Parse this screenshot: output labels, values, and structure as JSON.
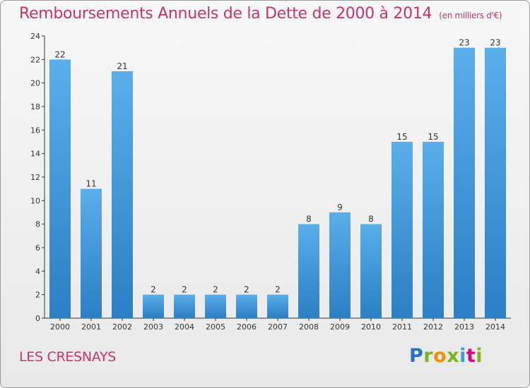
{
  "title": "Remboursements Annuels de la Dette de 2000 à 2014",
  "unit": "(en milliers d'€)",
  "commune": "LES CRESNAYS",
  "logo": "Proxiti",
  "colors": {
    "title": "#c8336f",
    "bar_top": "#5aaeea",
    "bar_bottom": "#2b7fc3"
  },
  "chart_data": {
    "type": "bar",
    "title": "Remboursements Annuels de la Dette de 2000 à 2014",
    "xlabel": "",
    "ylabel": "",
    "categories": [
      "2000",
      "2001",
      "2002",
      "2003",
      "2004",
      "2005",
      "2006",
      "2007",
      "2008",
      "2009",
      "2010",
      "2011",
      "2012",
      "2013",
      "2014"
    ],
    "values": [
      22,
      11,
      21,
      2,
      2,
      2,
      2,
      2,
      8,
      9,
      8,
      15,
      15,
      23,
      23
    ],
    "ylim": [
      0,
      24
    ],
    "yticks": [
      0,
      2,
      4,
      6,
      8,
      10,
      12,
      14,
      16,
      18,
      20,
      22,
      24
    ],
    "grid": false,
    "data_labels": true
  }
}
